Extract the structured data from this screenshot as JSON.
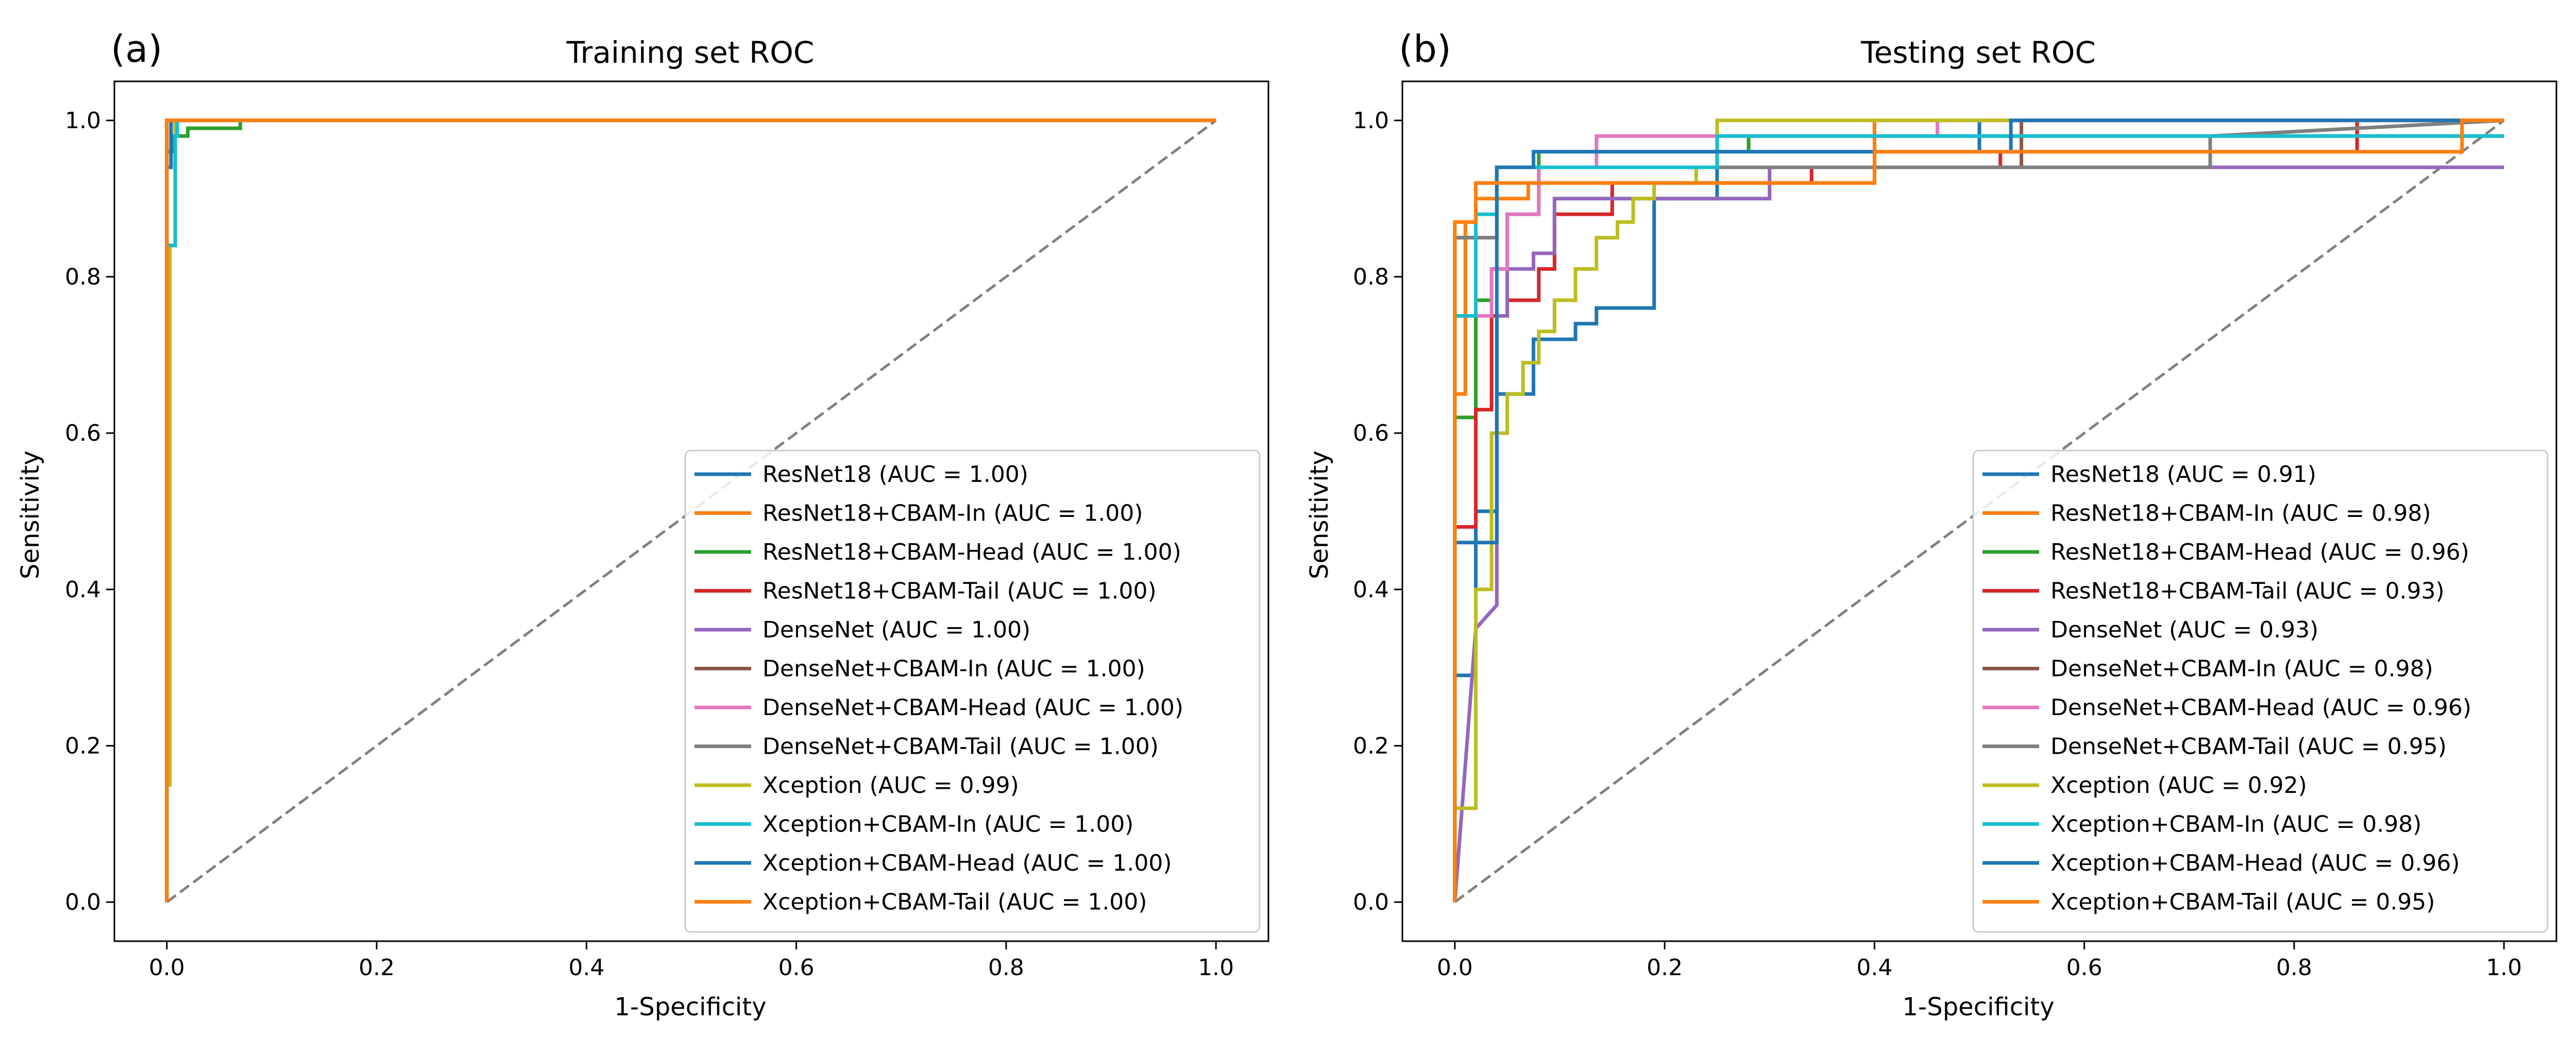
{
  "figure": {
    "panels": [
      "(a)",
      "(b)"
    ]
  },
  "chart_data": [
    {
      "type": "line",
      "panel_label": "(a)",
      "title": "Training set ROC",
      "xlabel": "1-Specificity",
      "ylabel": "Sensitivity",
      "xlim": [
        -0.05,
        1.05
      ],
      "ylim": [
        -0.05,
        1.05
      ],
      "xticks": [
        "0.0",
        "0.2",
        "0.4",
        "0.6",
        "0.8",
        "1.0"
      ],
      "yticks": [
        "0.0",
        "0.2",
        "0.4",
        "0.6",
        "0.8",
        "1.0"
      ],
      "grid": false,
      "legend_position": "lower right",
      "diagonal": {
        "x": [
          0,
          1
        ],
        "y": [
          0,
          1
        ],
        "style": "dashed",
        "color": "#808080"
      },
      "series": [
        {
          "name": "ResNet18 (AUC = 1.00)",
          "color": "#1f77b4",
          "x": [
            0,
            0,
            1
          ],
          "y": [
            0,
            1.0,
            1.0
          ]
        },
        {
          "name": "ResNet18+CBAM-In (AUC = 1.00)",
          "color": "#ff7f0e",
          "x": [
            0,
            0,
            1
          ],
          "y": [
            0,
            1.0,
            1.0
          ]
        },
        {
          "name": "ResNet18+CBAM-Head (AUC = 1.00)",
          "color": "#2ca02c",
          "x": [
            0,
            0,
            0.007,
            0.007,
            0.02,
            0.02,
            0.07,
            0.07,
            1
          ],
          "y": [
            0,
            0.96,
            0.96,
            0.98,
            0.98,
            0.99,
            0.99,
            1.0,
            1.0
          ]
        },
        {
          "name": "ResNet18+CBAM-Tail (AUC = 1.00)",
          "color": "#d62728",
          "x": [
            0,
            0,
            1
          ],
          "y": [
            0,
            1.0,
            1.0
          ]
        },
        {
          "name": "DenseNet (AUC = 1.00)",
          "color": "#9467bd",
          "x": [
            0,
            0,
            1
          ],
          "y": [
            0,
            1.0,
            1.0
          ]
        },
        {
          "name": "DenseNet+CBAM-In (AUC = 1.00)",
          "color": "#8c564b",
          "x": [
            0,
            0,
            1
          ],
          "y": [
            0,
            1.0,
            1.0
          ]
        },
        {
          "name": "DenseNet+CBAM-Head (AUC = 1.00)",
          "color": "#e377c2",
          "x": [
            0,
            0,
            1
          ],
          "y": [
            0,
            1.0,
            1.0
          ]
        },
        {
          "name": "DenseNet+CBAM-Tail (AUC = 1.00)",
          "color": "#7f7f7f",
          "x": [
            0,
            0,
            1
          ],
          "y": [
            0,
            1.0,
            1.0
          ]
        },
        {
          "name": "Xception (AUC = 0.99)",
          "color": "#bcbd22",
          "x": [
            0,
            0,
            0.003,
            0.003,
            0.008,
            0.008,
            1
          ],
          "y": [
            0,
            0.15,
            0.15,
            0.84,
            0.84,
            1.0,
            1.0
          ]
        },
        {
          "name": "Xception+CBAM-In (AUC = 1.00)",
          "color": "#17becf",
          "x": [
            0,
            0,
            0.008,
            0.008,
            0.01,
            0.01,
            1
          ],
          "y": [
            0,
            0.84,
            0.84,
            0.98,
            0.98,
            1.0,
            1.0
          ]
        },
        {
          "name": "Xception+CBAM-Head (AUC = 1.00)",
          "color": "#1f77b4",
          "x": [
            0,
            0,
            0.004,
            0.004,
            1
          ],
          "y": [
            0,
            0.94,
            0.94,
            1.0,
            1.0
          ]
        },
        {
          "name": "Xception+CBAM-Tail (AUC = 1.00)",
          "color": "#ff7f0e",
          "x": [
            0,
            0,
            1
          ],
          "y": [
            0,
            1.0,
            1.0
          ]
        }
      ]
    },
    {
      "type": "line",
      "panel_label": "(b)",
      "title": "Testing set ROC",
      "xlabel": "1-Specificity",
      "ylabel": "Sensitivity",
      "xlim": [
        -0.05,
        1.05
      ],
      "ylim": [
        -0.05,
        1.05
      ],
      "xticks": [
        "0.0",
        "0.2",
        "0.4",
        "0.6",
        "0.8",
        "1.0"
      ],
      "yticks": [
        "0.0",
        "0.2",
        "0.4",
        "0.6",
        "0.8",
        "1.0"
      ],
      "grid": false,
      "legend_position": "lower right",
      "diagonal": {
        "x": [
          0,
          1
        ],
        "y": [
          0,
          1
        ],
        "style": "dashed",
        "color": "#808080"
      },
      "series": [
        {
          "name": "ResNet18 (AUC = 0.91)",
          "color": "#1f77b4",
          "x": [
            0,
            0,
            0.02,
            0.02,
            0.04,
            0.04,
            0.075,
            0.075,
            0.115,
            0.115,
            0.135,
            0.135,
            0.19,
            0.19,
            0.25,
            0.25,
            0.5,
            0.5,
            1
          ],
          "y": [
            0,
            0.29,
            0.29,
            0.5,
            0.5,
            0.65,
            0.65,
            0.72,
            0.72,
            0.74,
            0.74,
            0.76,
            0.76,
            0.9,
            0.9,
            0.96,
            0.96,
            1.0,
            1.0
          ]
        },
        {
          "name": "ResNet18+CBAM-In (AUC = 0.98)",
          "color": "#ff7f0e",
          "x": [
            0,
            0,
            0.01,
            0.01,
            0.02,
            0.02,
            0.07,
            0.07,
            0.4,
            0.4,
            1
          ],
          "y": [
            0,
            0.65,
            0.65,
            0.87,
            0.87,
            0.9,
            0.9,
            0.92,
            0.92,
            1.0,
            1.0
          ]
        },
        {
          "name": "ResNet18+CBAM-Head (AUC = 0.96)",
          "color": "#2ca02c",
          "x": [
            0,
            0,
            0.02,
            0.02,
            0.035,
            0.035,
            0.05,
            0.05,
            0.08,
            0.08,
            0.28,
            0.28,
            1
          ],
          "y": [
            0,
            0.62,
            0.62,
            0.77,
            0.77,
            0.81,
            0.81,
            0.88,
            0.88,
            0.96,
            0.96,
            0.98,
            0.98
          ]
        },
        {
          "name": "ResNet18+CBAM-Tail (AUC = 0.93)",
          "color": "#d62728",
          "x": [
            0,
            0,
            0.02,
            0.02,
            0.035,
            0.035,
            0.05,
            0.05,
            0.08,
            0.08,
            0.095,
            0.095,
            0.15,
            0.15,
            0.34,
            0.34,
            0.52,
            0.52,
            0.86,
            0.86,
            1
          ],
          "y": [
            0,
            0.48,
            0.48,
            0.63,
            0.63,
            0.75,
            0.75,
            0.77,
            0.77,
            0.81,
            0.81,
            0.88,
            0.88,
            0.92,
            0.92,
            0.94,
            0.94,
            0.96,
            0.96,
            1.0,
            1.0
          ]
        },
        {
          "name": "DenseNet (AUC = 0.93)",
          "color": "#9467bd",
          "x": [
            0,
            0.02,
            0.04,
            0.04,
            0.05,
            0.05,
            0.075,
            0.075,
            0.095,
            0.095,
            0.3,
            0.3,
            1
          ],
          "y": [
            0,
            0.35,
            0.38,
            0.75,
            0.75,
            0.81,
            0.81,
            0.83,
            0.83,
            0.9,
            0.9,
            0.94,
            0.94
          ]
        },
        {
          "name": "DenseNet+CBAM-In (AUC = 0.98)",
          "color": "#8c564b",
          "x": [
            0,
            0,
            0.02,
            0.02,
            0.04,
            0.04,
            0.54,
            0.54,
            1
          ],
          "y": [
            0,
            0.85,
            0.85,
            0.92,
            0.92,
            0.94,
            0.94,
            1.0,
            1.0
          ]
        },
        {
          "name": "DenseNet+CBAM-Head (AUC = 0.96)",
          "color": "#e377c2",
          "x": [
            0,
            0,
            0.035,
            0.035,
            0.05,
            0.05,
            0.08,
            0.08,
            0.135,
            0.135,
            0.46,
            0.46,
            1
          ],
          "y": [
            0,
            0.75,
            0.75,
            0.81,
            0.81,
            0.88,
            0.88,
            0.94,
            0.94,
            0.98,
            0.98,
            1.0,
            1.0
          ]
        },
        {
          "name": "DenseNet+CBAM-Tail (AUC = 0.95)",
          "color": "#7f7f7f",
          "x": [
            0,
            0,
            0.04,
            0.04,
            0.72,
            0.72,
            1
          ],
          "y": [
            0,
            0.85,
            0.85,
            0.94,
            0.94,
            0.98,
            1.0
          ]
        },
        {
          "name": "Xception (AUC = 0.92)",
          "color": "#bcbd22",
          "x": [
            0,
            0,
            0.02,
            0.02,
            0.035,
            0.035,
            0.05,
            0.05,
            0.065,
            0.065,
            0.08,
            0.08,
            0.095,
            0.095,
            0.115,
            0.115,
            0.135,
            0.135,
            0.155,
            0.155,
            0.17,
            0.17,
            0.19,
            0.19,
            0.23,
            0.23,
            0.25,
            0.25,
            1
          ],
          "y": [
            0,
            0.12,
            0.12,
            0.4,
            0.4,
            0.6,
            0.6,
            0.65,
            0.65,
            0.69,
            0.69,
            0.73,
            0.73,
            0.77,
            0.77,
            0.81,
            0.81,
            0.85,
            0.85,
            0.87,
            0.87,
            0.9,
            0.9,
            0.92,
            0.92,
            0.94,
            0.94,
            1.0,
            1.0
          ]
        },
        {
          "name": "Xception+CBAM-In (AUC = 0.98)",
          "color": "#17becf",
          "x": [
            0,
            0,
            0.02,
            0.02,
            0.04,
            0.04,
            0.25,
            0.25,
            1
          ],
          "y": [
            0,
            0.75,
            0.75,
            0.88,
            0.88,
            0.94,
            0.94,
            0.98,
            0.98
          ]
        },
        {
          "name": "Xception+CBAM-Head (AUC = 0.96)",
          "color": "#1f77b4",
          "x": [
            0,
            0,
            0.04,
            0.04,
            0.075,
            0.075,
            0.53,
            0.53,
            1
          ],
          "y": [
            0,
            0.46,
            0.46,
            0.94,
            0.94,
            0.96,
            0.96,
            1.0,
            1.0
          ]
        },
        {
          "name": "Xception+CBAM-Tail (AUC = 0.95)",
          "color": "#ff7f0e",
          "x": [
            0,
            0,
            0.02,
            0.02,
            0.4,
            0.4,
            0.96,
            0.96,
            1
          ],
          "y": [
            0,
            0.87,
            0.87,
            0.92,
            0.92,
            0.96,
            0.96,
            1.0,
            1.0
          ]
        }
      ]
    }
  ]
}
